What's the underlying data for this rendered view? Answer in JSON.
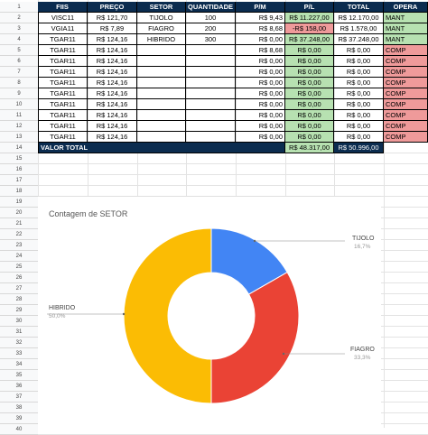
{
  "headers": [
    "FIIS",
    "PREÇO",
    "SETOR",
    "QUANTIDADE",
    "P/M",
    "P/L",
    "TOTAL",
    "OPERA"
  ],
  "rows": [
    {
      "n": "2",
      "fii": "VISC11",
      "preco": "R$ 121,70",
      "setor": "TIJOLO",
      "qtd": "100",
      "pm": "R$ 9,43",
      "pl": "R$ 11.227,00",
      "total": "R$ 12.170,00",
      "op": "MANT",
      "pl_color": "green",
      "op_color": "green"
    },
    {
      "n": "3",
      "fii": "VGIA11",
      "preco": "R$ 7,89",
      "setor": "FIAGRO",
      "qtd": "200",
      "pm": "R$ 8,68",
      "pl": "-R$ 158,00",
      "total": "R$ 1.578,00",
      "op": "MANT",
      "pl_color": "red",
      "op_color": "green"
    },
    {
      "n": "4",
      "fii": "TGAR11",
      "preco": "R$ 124,16",
      "setor": "HIBRIDO",
      "qtd": "300",
      "pm": "R$ 0,00",
      "pl": "R$ 37.248,00",
      "total": "R$ 37.248,00",
      "op": "MANT",
      "pl_color": "green",
      "op_color": "green"
    },
    {
      "n": "5",
      "fii": "TGAR11",
      "preco": "R$ 124,16",
      "setor": "",
      "qtd": "",
      "pm": "R$ 8,68",
      "pl": "R$ 0,00",
      "total": "R$ 0,00",
      "op": "COMP",
      "pl_color": "green",
      "op_color": "red"
    },
    {
      "n": "6",
      "fii": "TGAR11",
      "preco": "R$ 124,16",
      "setor": "",
      "qtd": "",
      "pm": "R$ 0,00",
      "pl": "R$ 0,00",
      "total": "R$ 0,00",
      "op": "COMP",
      "pl_color": "green",
      "op_color": "red"
    },
    {
      "n": "7",
      "fii": "TGAR11",
      "preco": "R$ 124,16",
      "setor": "",
      "qtd": "",
      "pm": "R$ 0,00",
      "pl": "R$ 0,00",
      "total": "R$ 0,00",
      "op": "COMP",
      "pl_color": "green",
      "op_color": "red"
    },
    {
      "n": "8",
      "fii": "TGAR11",
      "preco": "R$ 124,16",
      "setor": "",
      "qtd": "",
      "pm": "R$ 0,00",
      "pl": "R$ 0,00",
      "total": "R$ 0,00",
      "op": "COMP",
      "pl_color": "green",
      "op_color": "red"
    },
    {
      "n": "9",
      "fii": "TGAR11",
      "preco": "R$ 124,16",
      "setor": "",
      "qtd": "",
      "pm": "R$ 0,00",
      "pl": "R$ 0,00",
      "total": "R$ 0,00",
      "op": "COMP",
      "pl_color": "green",
      "op_color": "red"
    },
    {
      "n": "10",
      "fii": "TGAR11",
      "preco": "R$ 124,16",
      "setor": "",
      "qtd": "",
      "pm": "R$ 0,00",
      "pl": "R$ 0,00",
      "total": "R$ 0,00",
      "op": "COMP",
      "pl_color": "green",
      "op_color": "red"
    },
    {
      "n": "11",
      "fii": "TGAR11",
      "preco": "R$ 124,16",
      "setor": "",
      "qtd": "",
      "pm": "R$ 0,00",
      "pl": "R$ 0,00",
      "total": "R$ 0,00",
      "op": "COMP",
      "pl_color": "green",
      "op_color": "red"
    },
    {
      "n": "12",
      "fii": "TGAR11",
      "preco": "R$ 124,16",
      "setor": "",
      "qtd": "",
      "pm": "R$ 0,00",
      "pl": "R$ 0,00",
      "total": "R$ 0,00",
      "op": "COMP",
      "pl_color": "green",
      "op_color": "red"
    },
    {
      "n": "13",
      "fii": "TGAR11",
      "preco": "R$ 124,16",
      "setor": "",
      "qtd": "",
      "pm": "R$ 0,00",
      "pl": "R$ 0,00",
      "total": "R$ 0,00",
      "op": "COMP",
      "pl_color": "green",
      "op_color": "red"
    }
  ],
  "totals": {
    "n": "14",
    "label": "VALOR TOTAL",
    "pl": "R$ 48.317,00",
    "total": "R$ 50.996,00"
  },
  "row_numbers": [
    "1",
    "2",
    "3",
    "4",
    "5",
    "6",
    "7",
    "8",
    "9",
    "10",
    "11",
    "12",
    "13",
    "14",
    "15",
    "16",
    "17",
    "18",
    "19",
    "20",
    "21",
    "22",
    "23",
    "24",
    "25",
    "26",
    "27",
    "28",
    "29",
    "30",
    "31",
    "32",
    "33",
    "34",
    "35",
    "36",
    "37",
    "38",
    "39",
    "40"
  ],
  "colors": {
    "header_bg": "#0b2c4f",
    "green": "#b7e1b1",
    "red": "#ef9a9a",
    "tijolo": "#4285f4",
    "fiagro": "#ea4335",
    "hibrido": "#fbbc04"
  },
  "chart_data": {
    "type": "pie",
    "title": "Contagem de SETOR",
    "donut": true,
    "slices": [
      {
        "label": "TIJOLO",
        "value": 16.7,
        "display": "16,7%",
        "color": "#4285f4"
      },
      {
        "label": "FIAGRO",
        "value": 33.3,
        "display": "33,3%",
        "color": "#ea4335"
      },
      {
        "label": "HIBRIDO",
        "value": 50.0,
        "display": "50,0%",
        "color": "#fbbc04"
      }
    ]
  }
}
